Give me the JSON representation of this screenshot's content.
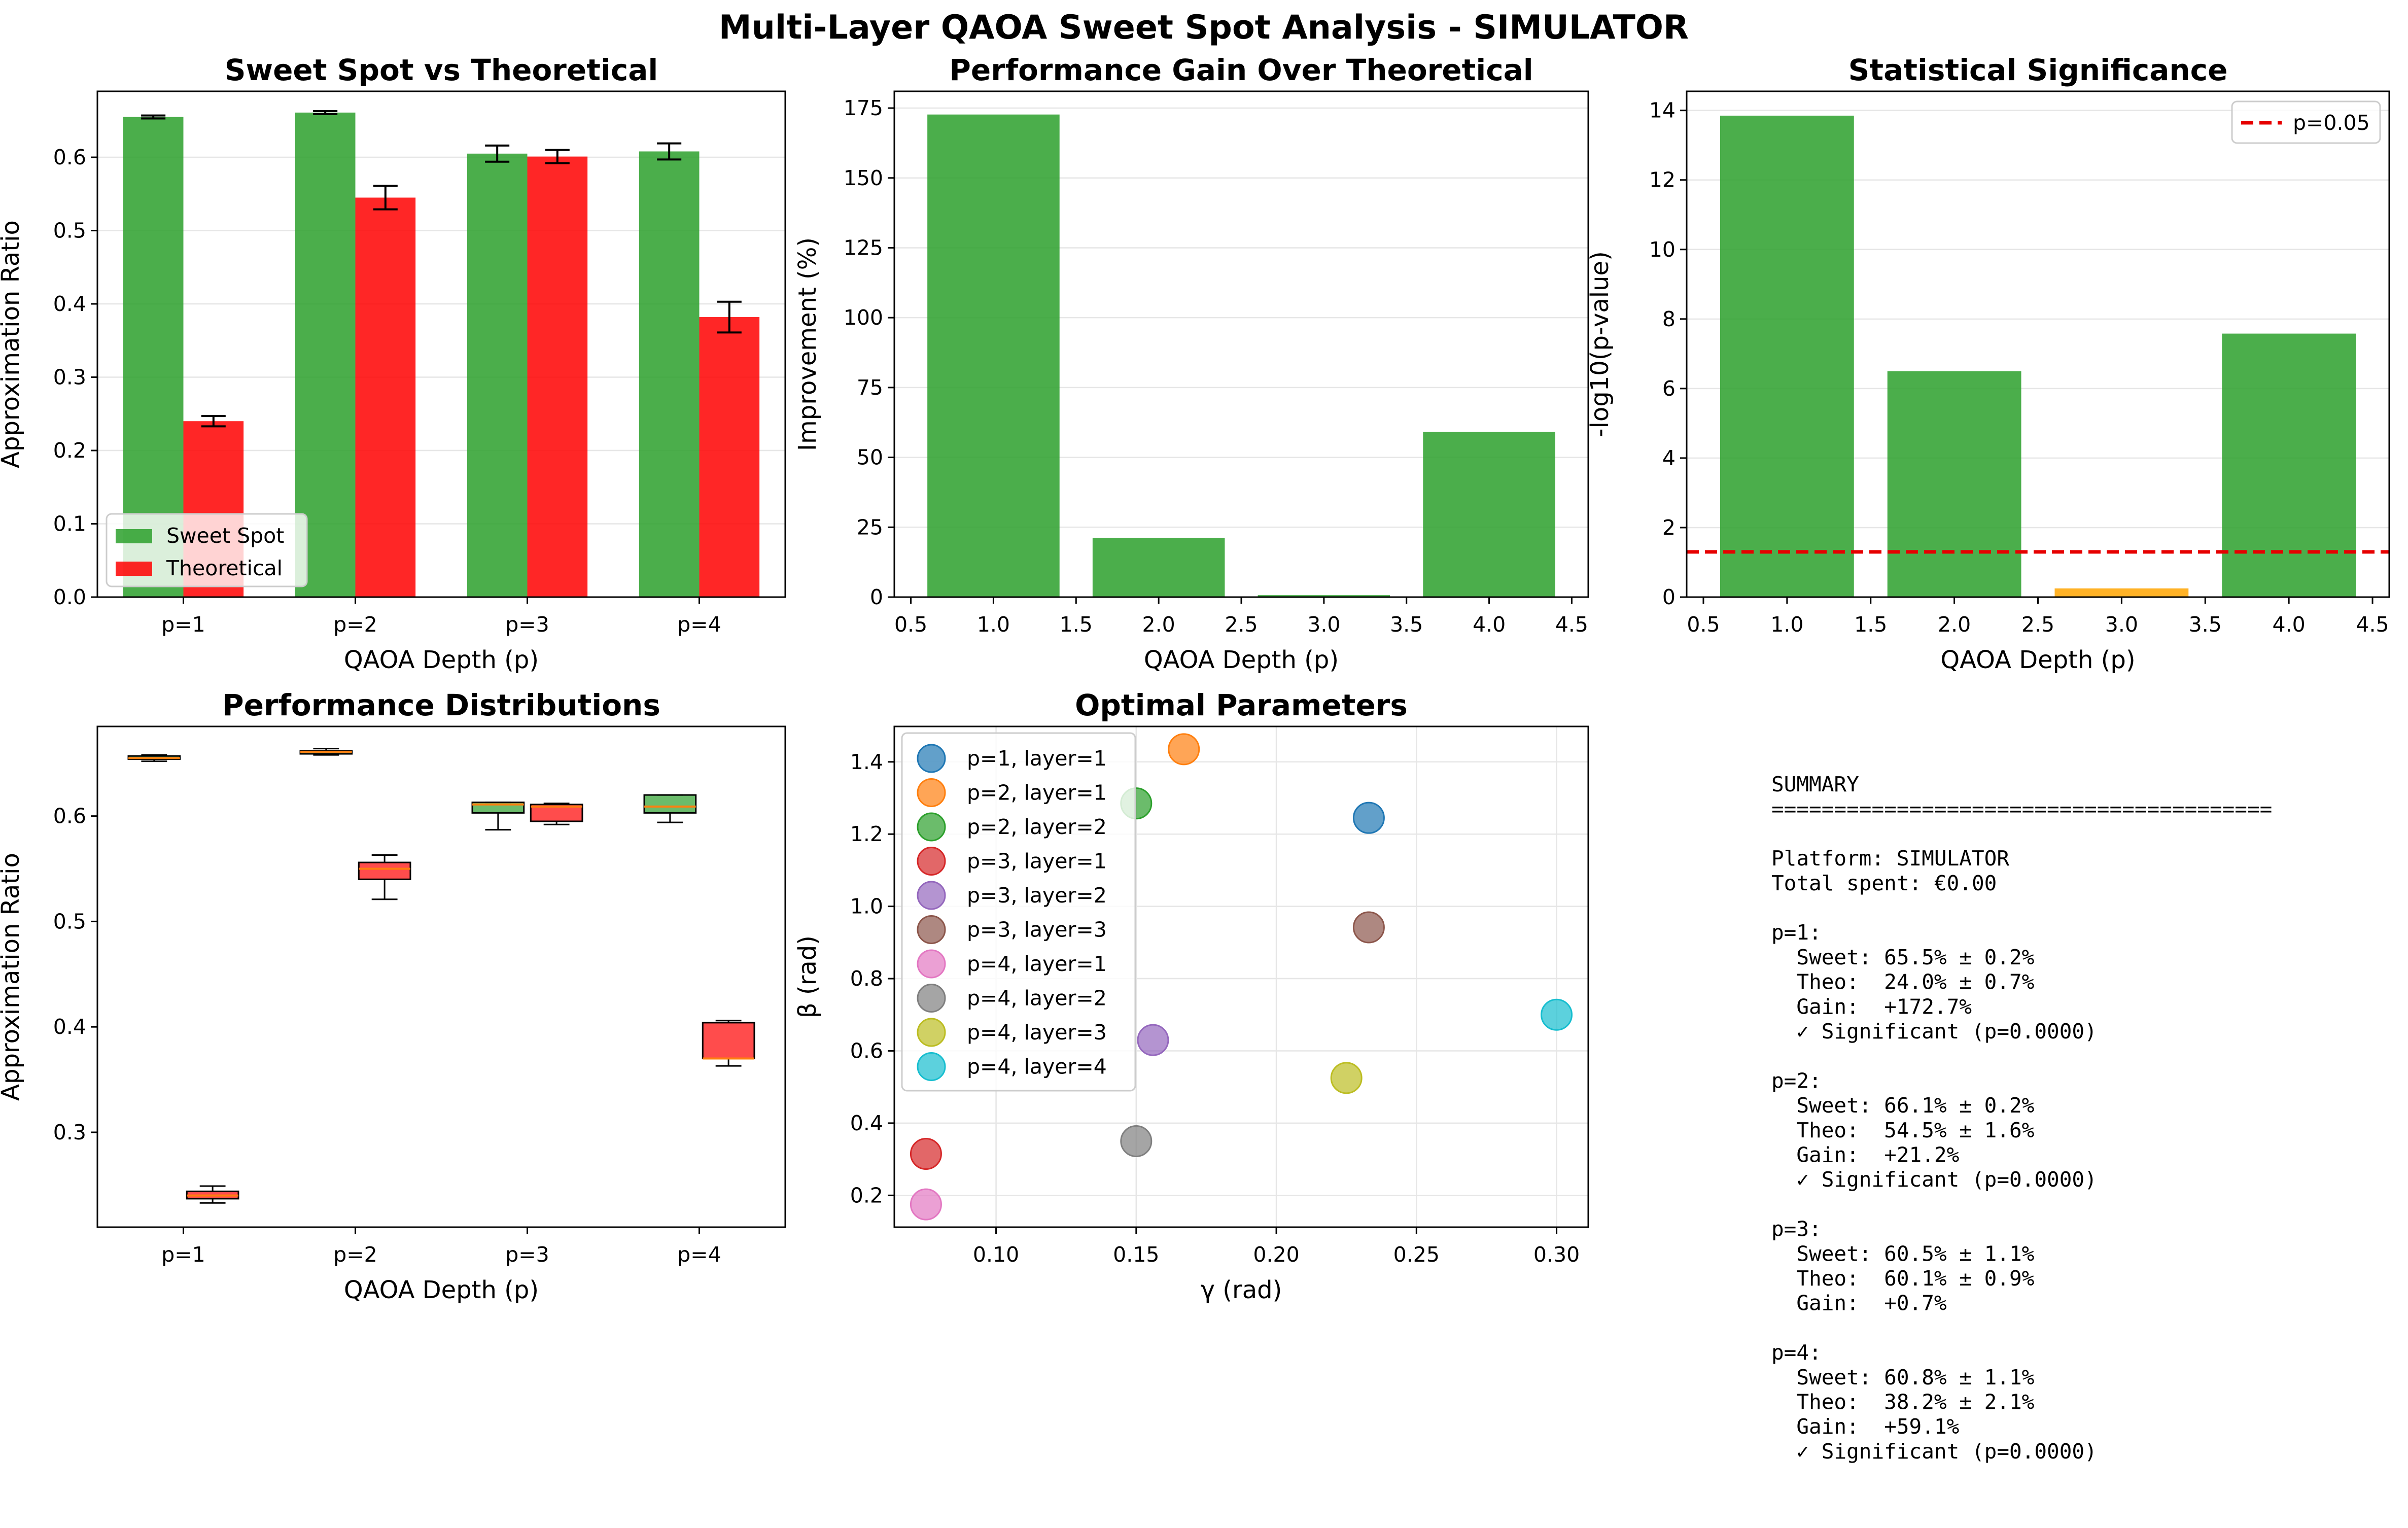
{
  "suptitle": "Multi-Layer QAOA Sweet Spot Analysis - SIMULATOR",
  "colors": {
    "sweet": "#2ca02c",
    "theo": "#ff0000",
    "orange": "#ffa500",
    "threshold": "#e60000",
    "scatter": [
      "#1f77b4",
      "#ff7f0e",
      "#2ca02c",
      "#d62728",
      "#9467bd",
      "#8c564b",
      "#e377c2",
      "#7f7f7f",
      "#bcbd22",
      "#17becf"
    ]
  },
  "chart_data": [
    {
      "type": "bar",
      "title": "Sweet Spot vs Theoretical",
      "xlabel": "QAOA Depth (p)",
      "ylabel": "Approximation Ratio",
      "categories": [
        "p=1",
        "p=2",
        "p=3",
        "p=4"
      ],
      "series": [
        {
          "name": "Sweet Spot",
          "values": [
            0.655,
            0.661,
            0.605,
            0.608
          ],
          "errors": [
            0.002,
            0.002,
            0.011,
            0.011
          ]
        },
        {
          "name": "Theoretical",
          "values": [
            0.24,
            0.545,
            0.601,
            0.382
          ],
          "errors": [
            0.007,
            0.016,
            0.009,
            0.021
          ]
        }
      ],
      "ylim": [
        0,
        0.69
      ],
      "yticks": [
        "0.0",
        "0.1",
        "0.2",
        "0.3",
        "0.4",
        "0.5",
        "0.6"
      ],
      "grid": "y",
      "legend": "lower-left"
    },
    {
      "type": "bar",
      "title": "Performance Gain Over Theoretical",
      "xlabel": "QAOA Depth (p)",
      "ylabel": "Improvement (%)",
      "x": [
        1,
        2,
        3,
        4
      ],
      "values": [
        172.7,
        21.2,
        0.7,
        59.1
      ],
      "xlim": [
        0.4,
        4.6
      ],
      "ylim": [
        0,
        181
      ],
      "xticks": [
        "0.5",
        "1.0",
        "1.5",
        "2.0",
        "2.5",
        "3.0",
        "3.5",
        "4.0",
        "4.5"
      ],
      "yticks": [
        "0",
        "25",
        "50",
        "75",
        "100",
        "125",
        "150",
        "175"
      ],
      "grid": "y"
    },
    {
      "type": "bar",
      "title": "Statistical Significance",
      "xlabel": "QAOA Depth (p)",
      "ylabel": "-log10(p-value)",
      "x": [
        1,
        2,
        3,
        4
      ],
      "values": [
        13.85,
        6.5,
        0.25,
        7.58
      ],
      "significant": [
        true,
        true,
        false,
        true
      ],
      "threshold": {
        "label": "p=0.05",
        "value": 1.301
      },
      "xlim": [
        0.4,
        4.6
      ],
      "ylim": [
        0,
        14.55
      ],
      "xticks": [
        "0.5",
        "1.0",
        "1.5",
        "2.0",
        "2.5",
        "3.0",
        "3.5",
        "4.0",
        "4.5"
      ],
      "yticks": [
        "0",
        "2",
        "4",
        "6",
        "8",
        "10",
        "12",
        "14"
      ],
      "grid": "y",
      "legend": "top-right"
    },
    {
      "type": "box",
      "title": "Performance Distributions",
      "xlabel": "QAOA Depth (p)",
      "ylabel": "Approximation Ratio",
      "categories": [
        "p=1",
        "p=2",
        "p=3",
        "p=4"
      ],
      "boxes": [
        {
          "group": 0,
          "series": "Sweet Spot",
          "min": 0.652,
          "q1": 0.654,
          "median": 0.655,
          "q3": 0.657,
          "max": 0.658
        },
        {
          "group": 0,
          "series": "Theoretical",
          "min": 0.233,
          "q1": 0.237,
          "median": 0.24,
          "q3": 0.244,
          "max": 0.249
        },
        {
          "group": 1,
          "series": "Sweet Spot",
          "min": 0.658,
          "q1": 0.659,
          "median": 0.661,
          "q3": 0.662,
          "max": 0.664
        },
        {
          "group": 1,
          "series": "Theoretical",
          "min": 0.521,
          "q1": 0.54,
          "median": 0.55,
          "q3": 0.556,
          "max": 0.563
        },
        {
          "group": 2,
          "series": "Sweet Spot",
          "min": 0.587,
          "q1": 0.603,
          "median": 0.611,
          "q3": 0.613,
          "max": 0.613
        },
        {
          "group": 2,
          "series": "Theoretical",
          "min": 0.592,
          "q1": 0.595,
          "median": 0.609,
          "q3": 0.611,
          "max": 0.612
        },
        {
          "group": 3,
          "series": "Sweet Spot",
          "min": 0.594,
          "q1": 0.603,
          "median": 0.609,
          "q3": 0.62,
          "max": 0.62
        },
        {
          "group": 3,
          "series": "Theoretical",
          "min": 0.363,
          "q1": 0.37,
          "median": 0.37,
          "q3": 0.404,
          "max": 0.406
        }
      ],
      "ylim": [
        0.21,
        0.685
      ],
      "yticks": [
        "0.3",
        "0.4",
        "0.5",
        "0.6"
      ]
    },
    {
      "type": "scatter",
      "title": "Optimal Parameters",
      "xlabel": "γ (rad)",
      "ylabel": "β (rad)",
      "series": [
        {
          "name": "p=1, layer=1",
          "x": 0.233,
          "y": 1.245
        },
        {
          "name": "p=2, layer=1",
          "x": 0.167,
          "y": 1.435
        },
        {
          "name": "p=2, layer=2",
          "x": 0.15,
          "y": 1.285
        },
        {
          "name": "p=3, layer=1",
          "x": 0.075,
          "y": 0.315
        },
        {
          "name": "p=3, layer=2",
          "x": 0.156,
          "y": 0.63
        },
        {
          "name": "p=3, layer=3",
          "x": 0.233,
          "y": 0.942
        },
        {
          "name": "p=4, layer=1",
          "x": 0.075,
          "y": 0.175
        },
        {
          "name": "p=4, layer=2",
          "x": 0.15,
          "y": 0.35
        },
        {
          "name": "p=4, layer=3",
          "x": 0.225,
          "y": 0.525
        },
        {
          "name": "p=4, layer=4",
          "x": 0.3,
          "y": 0.7
        }
      ],
      "xlim": [
        0.0637,
        0.3113
      ],
      "ylim": [
        0.112,
        1.498
      ],
      "xticks": [
        "0.10",
        "0.15",
        "0.20",
        "0.25",
        "0.30"
      ],
      "yticks": [
        "0.2",
        "0.4",
        "0.6",
        "0.8",
        "1.0",
        "1.2",
        "1.4"
      ],
      "grid": "both",
      "legend": "upper-left"
    }
  ],
  "summary": {
    "lines": [
      "SUMMARY",
      "========================================",
      "",
      "Platform: SIMULATOR",
      "Total spent: €0.00",
      "",
      "p=1:",
      "  Sweet: 65.5% ± 0.2%",
      "  Theo:  24.0% ± 0.7%",
      "  Gain:  +172.7%",
      "  ✓ Significant (p=0.0000)",
      "",
      "p=2:",
      "  Sweet: 66.1% ± 0.2%",
      "  Theo:  54.5% ± 1.6%",
      "  Gain:  +21.2%",
      "  ✓ Significant (p=0.0000)",
      "",
      "p=3:",
      "  Sweet: 60.5% ± 1.1%",
      "  Theo:  60.1% ± 0.9%",
      "  Gain:  +0.7%",
      "",
      "p=4:",
      "  Sweet: 60.8% ± 1.1%",
      "  Theo:  38.2% ± 2.1%",
      "  Gain:  +59.1%",
      "  ✓ Significant (p=0.0000)"
    ]
  }
}
